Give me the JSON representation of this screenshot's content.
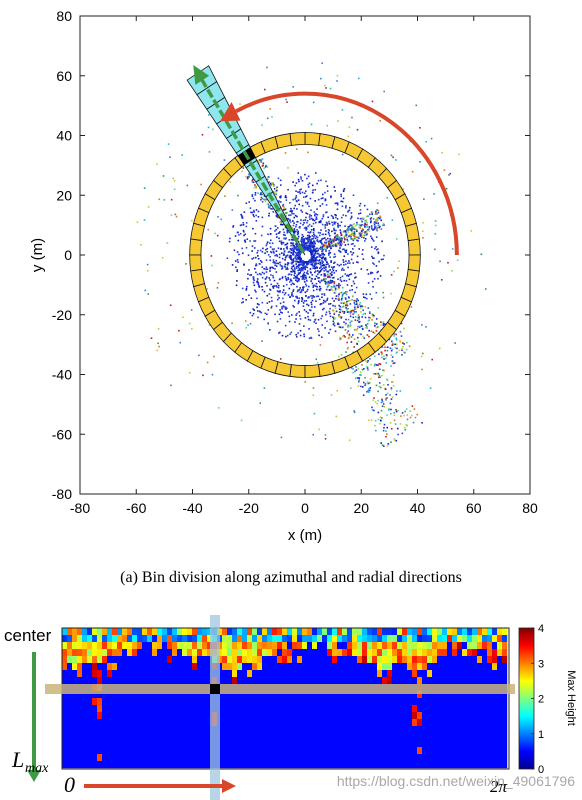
{
  "chart_data": [
    {
      "type": "scatter",
      "description_caption": "(a) Bin division along azimuthal and radial directions",
      "xlabel": "x (m)",
      "ylabel": "y (m)",
      "xlim": [
        -80,
        80
      ],
      "ylim": [
        -80,
        80
      ],
      "xticks": [
        -80,
        -60,
        -40,
        -20,
        0,
        20,
        40,
        60,
        80
      ],
      "yticks": [
        80,
        60,
        40,
        20,
        0,
        -20,
        -40,
        -60,
        -80
      ],
      "grid": false,
      "ring": {
        "inner_radius": 37,
        "outer_radius": 41,
        "segments": 48,
        "color": "#f6c934"
      },
      "sector": {
        "angle_deg": 122,
        "r_start": 0,
        "r_end": 72,
        "color": "#8fe6ef"
      },
      "highlight_bin": {
        "angle_deg": 122,
        "r": 39
      },
      "arc_arrow": {
        "radius": 54,
        "start_deg": 0,
        "end_deg": 120,
        "color": "#d9472b"
      },
      "radial_arrow_color": "#3f9a43"
    },
    {
      "type": "heatmap",
      "side_label_top": "center",
      "side_label_bottom_main": "L",
      "side_label_bottom_sub": "max",
      "x_start_label": "0",
      "x_end_label": "2π",
      "colorbar": {
        "label": "Max Height",
        "min": 0,
        "max": 4,
        "ticks": [
          0,
          1,
          2,
          3,
          4
        ]
      },
      "down_arrow_color": "#3f9a43",
      "right_arrow_color": "#d9472b"
    }
  ],
  "watermark": "https://blog.csdn.net/weixin_49061796"
}
